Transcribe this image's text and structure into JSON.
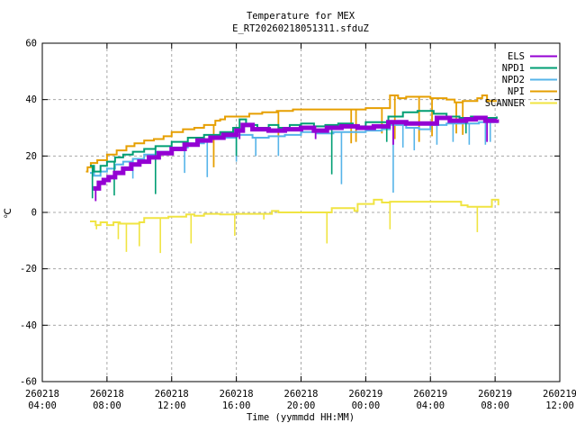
{
  "window": {
    "background": "#ffffff"
  },
  "chart_data": {
    "type": "line",
    "title": "Temperature for MEX",
    "subtitle": "E_RT20260218051311.sfduZ",
    "xlabel": "Time (yymmdd HH:MM)",
    "ylabel": "℃",
    "ylim": [
      -60,
      60
    ],
    "ytick_values": [
      60,
      40,
      20,
      0,
      -20,
      -40,
      -60
    ],
    "ytick_labels": [
      "60",
      "40",
      "20",
      "0",
      "-20",
      "-40",
      "-60"
    ],
    "x_axis_hours_range": [
      0,
      32
    ],
    "xticks": [
      {
        "hour": 0,
        "date": "260218",
        "time": "04:00"
      },
      {
        "hour": 4,
        "date": "260218",
        "time": "08:00"
      },
      {
        "hour": 8,
        "date": "260218",
        "time": "12:00"
      },
      {
        "hour": 12,
        "date": "260218",
        "time": "16:00"
      },
      {
        "hour": 16,
        "date": "260218",
        "time": "20:00"
      },
      {
        "hour": 20,
        "date": "260219",
        "time": "00:00"
      },
      {
        "hour": 24,
        "date": "260219",
        "time": "04:00"
      },
      {
        "hour": 28,
        "date": "260219",
        "time": "08:00"
      },
      {
        "hour": 32,
        "date": "260219",
        "time": "12:00"
      }
    ],
    "grid": true,
    "grid_color": "#a8a8a8",
    "legend_position": "top-right-inside",
    "series": [
      {
        "name": "ELS",
        "color": "#9400d3",
        "width": 5,
        "spike_width": 1.8,
        "points": [
          [
            3.15,
            8.5
          ],
          [
            3.5,
            10.5
          ],
          [
            3.8,
            11.5
          ],
          [
            4.1,
            12.5
          ],
          [
            4.5,
            14
          ],
          [
            5.0,
            15.5
          ],
          [
            5.5,
            17
          ],
          [
            6.0,
            18
          ],
          [
            6.6,
            19.5
          ],
          [
            7.2,
            21
          ],
          [
            8.0,
            22.5
          ],
          [
            8.8,
            24
          ],
          [
            9.6,
            25.5
          ],
          [
            10.4,
            26.5
          ],
          [
            11.2,
            27.5
          ],
          [
            12.0,
            29
          ],
          [
            12.4,
            31
          ],
          [
            13.0,
            29.5
          ],
          [
            14.0,
            29
          ],
          [
            15.0,
            29.5
          ],
          [
            16.0,
            30
          ],
          [
            16.8,
            29
          ],
          [
            17.6,
            30
          ],
          [
            18.5,
            30.5
          ],
          [
            19.5,
            30
          ],
          [
            20.5,
            30.5
          ],
          [
            21.4,
            32
          ],
          [
            22.5,
            31.5
          ],
          [
            23.5,
            31.5
          ],
          [
            24.4,
            33.5
          ],
          [
            25.2,
            32.5
          ],
          [
            26.2,
            33
          ],
          [
            26.8,
            33.5
          ],
          [
            27.4,
            32.5
          ],
          [
            28.1,
            33
          ]
        ],
        "spikes": [
          [
            3.3,
            4
          ],
          [
            12.2,
            26
          ],
          [
            16.9,
            26
          ],
          [
            21.7,
            24
          ],
          [
            27.5,
            25
          ]
        ]
      },
      {
        "name": "NPD1",
        "color": "#009e73",
        "width": 2,
        "spike_width": 1.6,
        "points": [
          [
            2.95,
            16.5
          ],
          [
            3.2,
            14.5
          ],
          [
            3.6,
            16.5
          ],
          [
            4.0,
            18
          ],
          [
            4.5,
            19.5
          ],
          [
            5.0,
            20.5
          ],
          [
            5.6,
            21.5
          ],
          [
            6.3,
            22.5
          ],
          [
            7.0,
            23.5
          ],
          [
            8.0,
            25
          ],
          [
            9.0,
            26.5
          ],
          [
            10.0,
            27.5
          ],
          [
            11.0,
            28.5
          ],
          [
            11.8,
            30
          ],
          [
            12.2,
            33
          ],
          [
            12.6,
            31
          ],
          [
            13.3,
            30
          ],
          [
            14.0,
            31
          ],
          [
            14.6,
            30
          ],
          [
            15.3,
            31
          ],
          [
            16.0,
            31.5
          ],
          [
            16.8,
            30.5
          ],
          [
            17.5,
            31
          ],
          [
            18.3,
            31.5
          ],
          [
            19.2,
            30.5
          ],
          [
            20.0,
            32
          ],
          [
            20.8,
            32
          ],
          [
            21.4,
            34
          ],
          [
            22.3,
            35.5
          ],
          [
            23.2,
            36
          ],
          [
            24.2,
            35
          ],
          [
            25.0,
            34
          ],
          [
            25.8,
            33.5
          ],
          [
            26.5,
            34
          ],
          [
            27.3,
            33.5
          ],
          [
            28.1,
            34
          ]
        ],
        "spikes": [
          [
            3.1,
            5
          ],
          [
            4.45,
            6
          ],
          [
            7.0,
            6.5
          ],
          [
            12.0,
            20
          ],
          [
            17.9,
            13.5
          ],
          [
            21.3,
            25
          ],
          [
            26.2,
            28
          ]
        ]
      },
      {
        "name": "NPD2",
        "color": "#56b4e9",
        "width": 2,
        "spike_width": 1.6,
        "points": [
          [
            2.95,
            14
          ],
          [
            3.2,
            13
          ],
          [
            3.6,
            14.5
          ],
          [
            4.0,
            15.5
          ],
          [
            4.5,
            17
          ],
          [
            5.0,
            18
          ],
          [
            5.6,
            19
          ],
          [
            6.3,
            20.5
          ],
          [
            7.0,
            21.5
          ],
          [
            8.0,
            23
          ],
          [
            9.0,
            24.5
          ],
          [
            10.0,
            26
          ],
          [
            11.0,
            26.5
          ],
          [
            12.0,
            27.5
          ],
          [
            13.0,
            26.5
          ],
          [
            14.0,
            27
          ],
          [
            15.0,
            27.5
          ],
          [
            16.0,
            28.5
          ],
          [
            17.0,
            28
          ],
          [
            18.0,
            28.5
          ],
          [
            19.0,
            28.5
          ],
          [
            20.0,
            29
          ],
          [
            21.0,
            29.5
          ],
          [
            21.5,
            31
          ],
          [
            22.5,
            30
          ],
          [
            23.3,
            29.5
          ],
          [
            24.0,
            31
          ],
          [
            25.0,
            31.5
          ],
          [
            26.0,
            31.5
          ],
          [
            27.0,
            32
          ],
          [
            28.1,
            32.5
          ]
        ],
        "spikes": [
          [
            3.1,
            8
          ],
          [
            5.6,
            12
          ],
          [
            8.8,
            14
          ],
          [
            10.2,
            12.5
          ],
          [
            12.0,
            18
          ],
          [
            13.2,
            20
          ],
          [
            14.6,
            20
          ],
          [
            18.5,
            10
          ],
          [
            21.7,
            7
          ],
          [
            22.3,
            23
          ],
          [
            23.0,
            22
          ],
          [
            24.4,
            24
          ],
          [
            25.4,
            25
          ],
          [
            26.4,
            24
          ],
          [
            27.4,
            24
          ],
          [
            27.7,
            25
          ]
        ]
      },
      {
        "name": "NPI",
        "color": "#e69f00",
        "width": 2,
        "spike_width": 1.8,
        "points": [
          [
            2.7,
            14.5
          ],
          [
            2.8,
            16
          ],
          [
            3.0,
            17.5
          ],
          [
            3.4,
            18.5
          ],
          [
            4.0,
            20.5
          ],
          [
            4.6,
            22
          ],
          [
            5.2,
            23.5
          ],
          [
            5.7,
            24.5
          ],
          [
            6.3,
            25.5
          ],
          [
            6.9,
            26
          ],
          [
            7.5,
            27
          ],
          [
            8.0,
            28.5
          ],
          [
            8.7,
            29.5
          ],
          [
            9.4,
            30
          ],
          [
            10.0,
            31
          ],
          [
            10.7,
            32.5
          ],
          [
            11.0,
            33
          ],
          [
            11.3,
            34
          ],
          [
            12.0,
            34
          ],
          [
            12.8,
            35
          ],
          [
            13.6,
            35.5
          ],
          [
            14.5,
            36
          ],
          [
            15.5,
            36.5
          ],
          [
            17.0,
            36.5
          ],
          [
            18.5,
            36.5
          ],
          [
            20.0,
            37
          ],
          [
            21.0,
            37
          ],
          [
            21.5,
            41.5
          ],
          [
            22.0,
            40.5
          ],
          [
            22.5,
            41
          ],
          [
            24.0,
            40.5
          ],
          [
            25.0,
            40
          ],
          [
            25.5,
            39
          ],
          [
            26.0,
            39.5
          ],
          [
            26.9,
            40.5
          ],
          [
            27.2,
            41.5
          ],
          [
            27.5,
            39.5
          ],
          [
            28.1,
            39.5
          ]
        ],
        "spikes": [
          [
            10.6,
            16
          ],
          [
            14.6,
            27
          ],
          [
            19.1,
            24.5
          ],
          [
            19.4,
            25
          ],
          [
            21.0,
            28
          ],
          [
            21.8,
            26
          ],
          [
            23.3,
            25
          ],
          [
            24.1,
            27
          ],
          [
            25.6,
            28
          ],
          [
            26.0,
            27.5
          ]
        ]
      },
      {
        "name": "SCANNER",
        "color": "#f0e442",
        "width": 2,
        "spike_width": 1.6,
        "points": [
          [
            2.95,
            -3.2
          ],
          [
            3.3,
            -4.5
          ],
          [
            3.6,
            -3.5
          ],
          [
            4.0,
            -4.5
          ],
          [
            4.4,
            -3.5
          ],
          [
            4.8,
            -4
          ],
          [
            5.4,
            -4
          ],
          [
            6.0,
            -3.5
          ],
          [
            6.3,
            -2
          ],
          [
            7.3,
            -2
          ],
          [
            7.8,
            -1.5
          ],
          [
            8.9,
            -0.7
          ],
          [
            9.4,
            -1.2
          ],
          [
            10.0,
            -0.5
          ],
          [
            11.0,
            -0.7
          ],
          [
            12.0,
            -0.5
          ],
          [
            13.0,
            -0.5
          ],
          [
            14.0,
            -0.5
          ],
          [
            14.2,
            0.5
          ],
          [
            14.6,
            0
          ],
          [
            15.7,
            0
          ],
          [
            17.9,
            1.5
          ],
          [
            19.3,
            0.5
          ],
          [
            19.5,
            3
          ],
          [
            20.5,
            4.5
          ],
          [
            21.0,
            3.5
          ],
          [
            21.5,
            3.8
          ],
          [
            25.9,
            2.5
          ],
          [
            26.3,
            2
          ],
          [
            27.8,
            4.5
          ],
          [
            28.2,
            2.5
          ]
        ],
        "spikes": [
          [
            3.35,
            -6
          ],
          [
            4.7,
            -9.5
          ],
          [
            5.2,
            -14
          ],
          [
            6.0,
            -12
          ],
          [
            7.3,
            -14.4
          ],
          [
            9.2,
            -11
          ],
          [
            11.9,
            -8.3
          ],
          [
            13.7,
            -2.5
          ],
          [
            17.6,
            -11
          ],
          [
            21.5,
            -6
          ],
          [
            26.9,
            -7
          ]
        ]
      }
    ]
  }
}
